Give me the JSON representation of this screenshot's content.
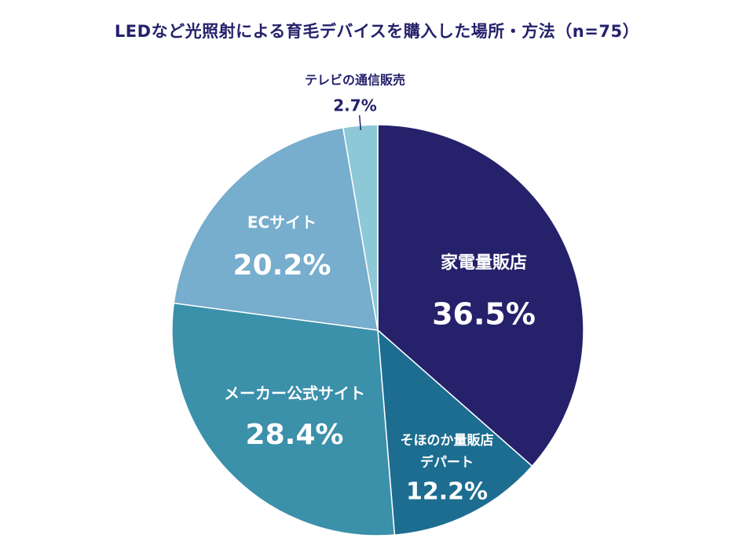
{
  "chart_data": {
    "type": "pie",
    "title": "LEDなど光照射による育毛デバイスを購入した場所・方法（n=75）",
    "start_angle_deg": 0,
    "direction": "clockwise",
    "slices": [
      {
        "name": "家電量販店",
        "lines": [
          "家電量販店"
        ],
        "value": 36.5,
        "pct": "36.5%",
        "color": "#25216b",
        "label_color": "#ffffff"
      },
      {
        "name": "そほのか量販店デパート",
        "lines": [
          "そほのか量販店",
          "デパート"
        ],
        "value": 12.2,
        "pct": "12.2%",
        "color": "#1d6d91",
        "label_color": "#ffffff"
      },
      {
        "name": "メーカー公式サイト",
        "lines": [
          "メーカー公式サイト"
        ],
        "value": 28.4,
        "pct": "28.4%",
        "color": "#3b90aa",
        "label_color": "#ffffff"
      },
      {
        "name": "ECサイト",
        "lines": [
          "ECサイト"
        ],
        "value": 20.2,
        "pct": "20.2%",
        "color": "#77adcd",
        "label_color": "#ffffff"
      },
      {
        "name": "テレビの通信販売",
        "lines": [
          "テレビの通信販売"
        ],
        "value": 2.7,
        "pct": "2.7%",
        "color": "#8dc8d6",
        "label_color": "#25216b"
      }
    ],
    "colors": {
      "title": "#25216b",
      "border": "#ffffff",
      "leader": "#25216b"
    }
  }
}
